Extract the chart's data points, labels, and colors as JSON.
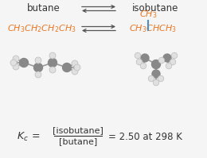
{
  "bg_color": "#f5f5f5",
  "text_color": "#333333",
  "orange_color": "#E87722",
  "blue_color": "#4A90C4",
  "title_butane": "butane",
  "title_isobutane": "isobutane",
  "carbon_color": "#888888",
  "hydrogen_color": "#e0e0e0",
  "hydrogen_ec": "#bbbbbb",
  "bond_color": "#999999",
  "figsize": [
    2.6,
    1.99
  ],
  "dpi": 100,
  "arrow_color": "#555555"
}
